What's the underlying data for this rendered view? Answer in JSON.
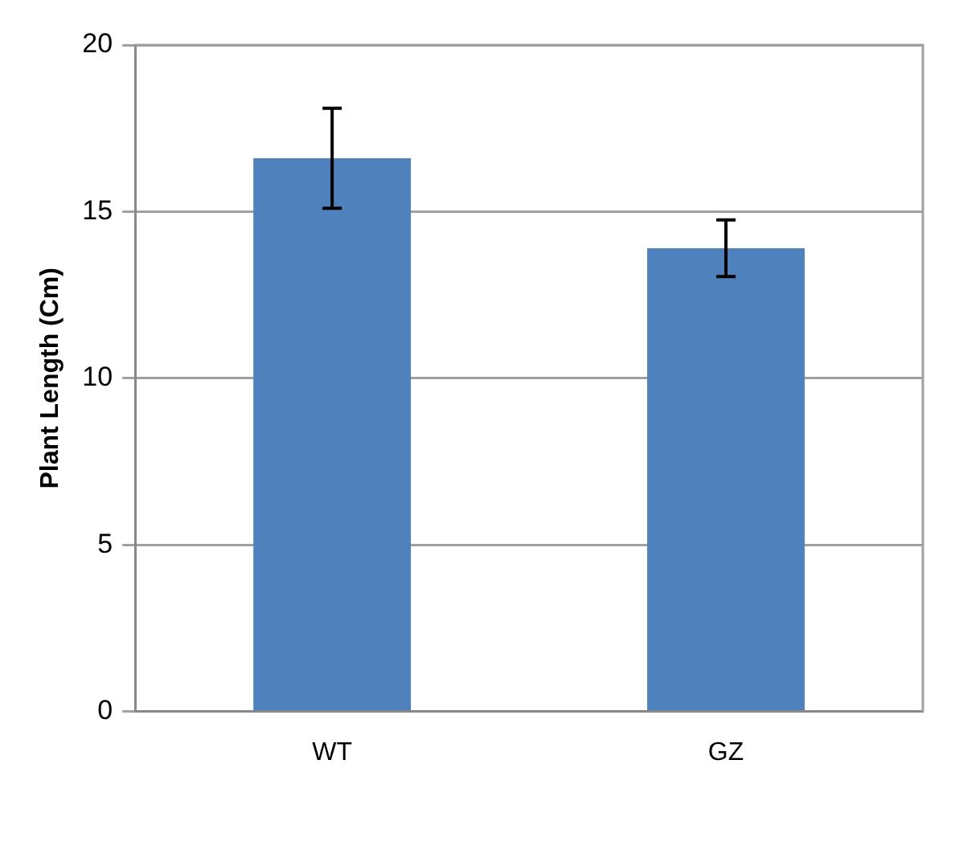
{
  "chart_data": {
    "type": "bar",
    "ylabel": "Plant Length (Cm)",
    "categories": [
      "WT",
      "GZ"
    ],
    "values": [
      16.6,
      13.9
    ],
    "errors": [
      1.5,
      0.85
    ],
    "color": "#4f81bd",
    "ylim": [
      0,
      20
    ],
    "yticks": [
      0,
      5,
      10,
      15,
      20
    ],
    "grid": "y",
    "legend": false
  }
}
